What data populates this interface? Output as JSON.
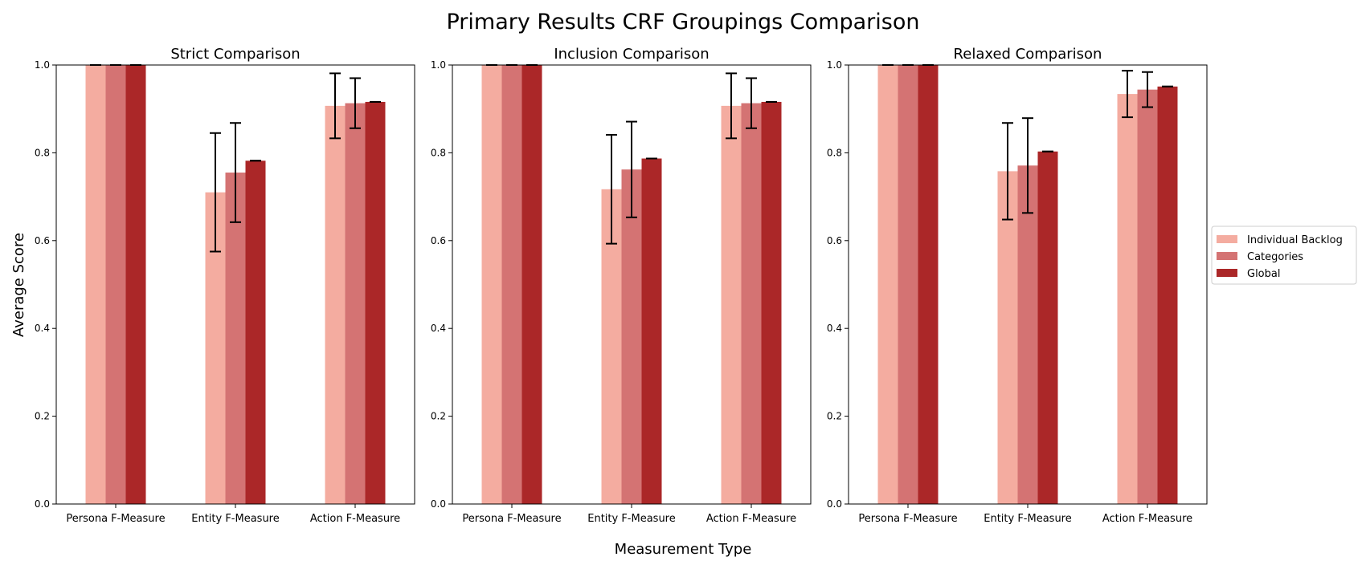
{
  "figure": {
    "title": "Primary Results CRF Groupings Comparison",
    "xlabel": "Measurement Type",
    "ylabel": "Average Score"
  },
  "legend": {
    "placement": "right",
    "items": [
      {
        "name": "Individual Backlog",
        "color": "#f4aca0"
      },
      {
        "name": "Categories",
        "color": "#d47373"
      },
      {
        "name": "Global",
        "color": "#ab2728"
      }
    ]
  },
  "chart_data": [
    {
      "type": "bar",
      "title": "Strict Comparison",
      "categories": [
        "Persona F-Measure",
        "Entity F-Measure",
        "Action F-Measure"
      ],
      "ylim": [
        0,
        1.0
      ],
      "yticks": [
        "0.0",
        "0.2",
        "0.4",
        "0.6",
        "0.8",
        "1.0"
      ],
      "series": [
        {
          "name": "Individual Backlog",
          "values": [
            1.0,
            0.71,
            0.907
          ],
          "errors": [
            0.0,
            0.135,
            0.074
          ]
        },
        {
          "name": "Categories",
          "values": [
            1.0,
            0.755,
            0.913
          ],
          "errors": [
            0.0,
            0.113,
            0.057
          ]
        },
        {
          "name": "Global",
          "values": [
            1.0,
            0.782,
            0.916
          ],
          "errors": [
            0.0,
            0.0,
            0.0
          ]
        }
      ]
    },
    {
      "type": "bar",
      "title": "Inclusion Comparison",
      "categories": [
        "Persona F-Measure",
        "Entity F-Measure",
        "Action F-Measure"
      ],
      "ylim": [
        0,
        1.0
      ],
      "yticks": [
        "0.0",
        "0.2",
        "0.4",
        "0.6",
        "0.8",
        "1.0"
      ],
      "series": [
        {
          "name": "Individual Backlog",
          "values": [
            1.0,
            0.717,
            0.907
          ],
          "errors": [
            0.0,
            0.124,
            0.074
          ]
        },
        {
          "name": "Categories",
          "values": [
            1.0,
            0.762,
            0.913
          ],
          "errors": [
            0.0,
            0.109,
            0.057
          ]
        },
        {
          "name": "Global",
          "values": [
            1.0,
            0.787,
            0.916
          ],
          "errors": [
            0.0,
            0.0,
            0.0
          ]
        }
      ]
    },
    {
      "type": "bar",
      "title": "Relaxed Comparison",
      "categories": [
        "Persona F-Measure",
        "Entity F-Measure",
        "Action F-Measure"
      ],
      "ylim": [
        0,
        1.0
      ],
      "yticks": [
        "0.0",
        "0.2",
        "0.4",
        "0.6",
        "0.8",
        "1.0"
      ],
      "series": [
        {
          "name": "Individual Backlog",
          "values": [
            1.0,
            0.758,
            0.934
          ],
          "errors": [
            0.0,
            0.11,
            0.053
          ]
        },
        {
          "name": "Categories",
          "values": [
            1.0,
            0.771,
            0.944
          ],
          "errors": [
            0.0,
            0.108,
            0.04
          ]
        },
        {
          "name": "Global",
          "values": [
            1.0,
            0.803,
            0.951
          ],
          "errors": [
            0.0,
            0.0,
            0.0
          ]
        }
      ]
    }
  ]
}
